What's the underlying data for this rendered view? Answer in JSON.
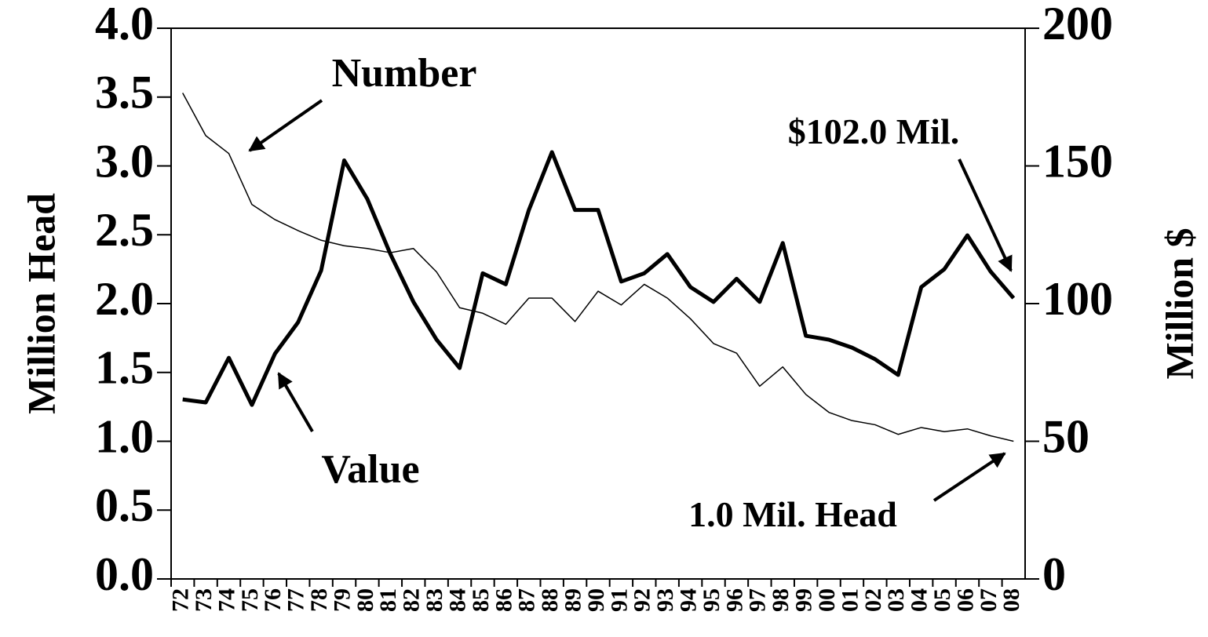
{
  "chart_data": {
    "type": "line",
    "categories": [
      "72",
      "73",
      "74",
      "75",
      "76",
      "77",
      "78",
      "79",
      "80",
      "81",
      "82",
      "83",
      "84",
      "85",
      "86",
      "87",
      "88",
      "89",
      "90",
      "91",
      "92",
      "93",
      "94",
      "95",
      "96",
      "97",
      "98",
      "99",
      "00",
      "01",
      "02",
      "03",
      "04",
      "05",
      "06",
      "07",
      "08"
    ],
    "series": [
      {
        "color": "#000000",
        "line_width": 1.5,
        "values": [
          3.53,
          3.22,
          3.09,
          2.72,
          2.61,
          2.53,
          2.46,
          2.42,
          2.4,
          2.37,
          2.4,
          2.23,
          1.97,
          1.93,
          1.85,
          2.04,
          2.04,
          1.87,
          2.09,
          1.99,
          2.14,
          2.04,
          1.89,
          1.71,
          1.64,
          1.4,
          1.54,
          1.34,
          1.21,
          1.15,
          1.12,
          1.05,
          1.1,
          1.07,
          1.09,
          1.04,
          1.0
        ]
      },
      {
        "color": "#000000",
        "line_width": 5,
        "axis": "y2",
        "values": [
          65.2,
          64.1,
          80.3,
          63.2,
          81.8,
          93.2,
          112,
          152,
          138,
          118,
          100.6,
          86.9,
          76.6,
          111,
          107,
          134,
          155,
          134,
          134,
          108,
          111,
          118,
          106,
          100.6,
          109,
          100.6,
          122,
          88.3,
          86.9,
          84.0,
          79.8,
          74.1,
          106,
          112.5,
          124.8,
          111.7,
          102.0
        ]
      }
    ],
    "ylabel": "Million Head",
    "y2label": "Million $",
    "ylim": [
      0,
      4
    ],
    "yticks": [
      {
        "value": 0,
        "label": "0.0"
      },
      {
        "value": 0.5,
        "label": "0.5"
      },
      {
        "value": 1,
        "label": "1.0"
      },
      {
        "value": 1.5,
        "label": "1.5"
      },
      {
        "value": 2,
        "label": "2.0"
      },
      {
        "value": 2.5,
        "label": "2.5"
      },
      {
        "value": 3,
        "label": "3.0"
      },
      {
        "value": 3.5,
        "label": "3.5"
      },
      {
        "value": 4,
        "label": "4.0"
      }
    ],
    "y2lim": [
      0,
      200
    ],
    "y2ticks": [
      0,
      50,
      100,
      150,
      200
    ],
    "annotations": [
      "Number",
      "Value",
      "$102.0 Mil.",
      "1.0 Mil. Head"
    ]
  }
}
